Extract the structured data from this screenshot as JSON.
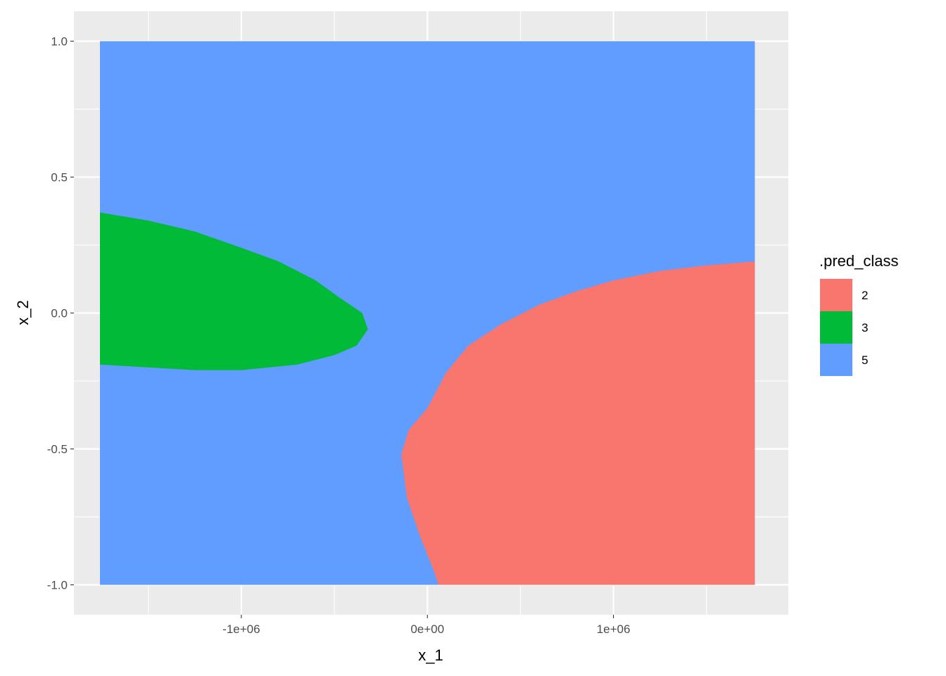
{
  "chart_data": {
    "type": "heatmap",
    "title": "",
    "xlabel": "x_1",
    "ylabel": "x_2",
    "xlim": [
      -1900000,
      1940000
    ],
    "ylim": [
      -1.11,
      1.11
    ],
    "x_ticks": [
      {
        "value": -1000000,
        "label": "-1e+06"
      },
      {
        "value": 0,
        "label": "0e+00"
      },
      {
        "value": 1000000,
        "label": "1e+06"
      }
    ],
    "y_ticks": [
      {
        "value": -1.0,
        "label": "-1.0"
      },
      {
        "value": -0.5,
        "label": "-0.5"
      },
      {
        "value": 0.0,
        "label": "0.0"
      },
      {
        "value": 0.5,
        "label": "0.5"
      },
      {
        "value": 1.0,
        "label": "1.0"
      }
    ],
    "grid": true,
    "legend": {
      "title": ".pred_class",
      "position": "right",
      "entries": [
        {
          "label": "2",
          "color": "#F8766D"
        },
        {
          "label": "3",
          "color": "#00BA38"
        },
        {
          "label": "5",
          "color": "#619CFF"
        }
      ]
    },
    "background_class": "5",
    "regions": [
      {
        "class": "3",
        "boundary": [
          [
            -1760000,
            0.37
          ],
          [
            -1500000,
            0.34
          ],
          [
            -1250000,
            0.3
          ],
          [
            -1000000,
            0.24
          ],
          [
            -800000,
            0.19
          ],
          [
            -600000,
            0.12
          ],
          [
            -480000,
            0.06
          ],
          [
            -350000,
            0.0
          ],
          [
            -320000,
            -0.06
          ],
          [
            -380000,
            -0.12
          ],
          [
            -500000,
            -0.155
          ],
          [
            -700000,
            -0.19
          ],
          [
            -1000000,
            -0.21
          ],
          [
            -1250000,
            -0.21
          ],
          [
            -1500000,
            -0.2
          ],
          [
            -1760000,
            -0.19
          ]
        ]
      },
      {
        "class": "2",
        "boundary": [
          [
            1760000,
            0.19
          ],
          [
            1500000,
            0.175
          ],
          [
            1250000,
            0.155
          ],
          [
            1000000,
            0.12
          ],
          [
            800000,
            0.08
          ],
          [
            600000,
            0.03
          ],
          [
            400000,
            -0.04
          ],
          [
            220000,
            -0.12
          ],
          [
            100000,
            -0.22
          ],
          [
            0,
            -0.35
          ],
          [
            -100000,
            -0.43
          ],
          [
            -140000,
            -0.52
          ],
          [
            -110000,
            -0.68
          ],
          [
            -40000,
            -0.82
          ],
          [
            30000,
            -0.94
          ],
          [
            60000,
            -1.0
          ],
          [
            1760000,
            -1.0
          ]
        ]
      }
    ],
    "data_extent": {
      "x": [
        -1760000,
        1760000
      ],
      "y": [
        -1.0,
        1.0
      ]
    }
  }
}
